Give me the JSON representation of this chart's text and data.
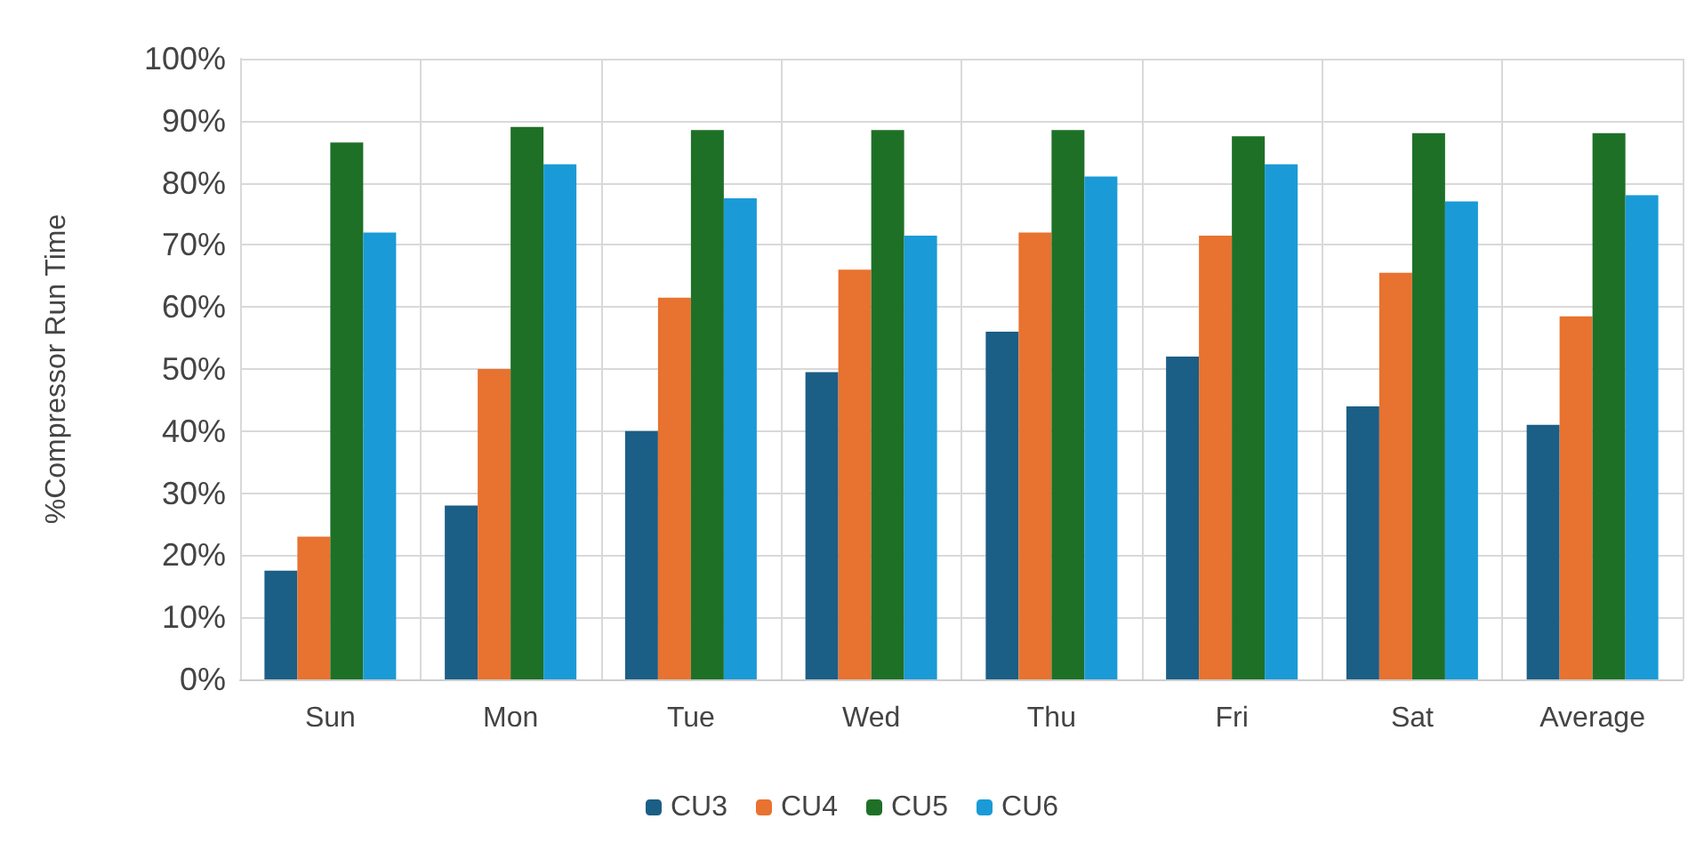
{
  "chart_data": {
    "type": "bar",
    "ylabel": "%Compressor Run Time",
    "categories": [
      "Sun",
      "Mon",
      "Tue",
      "Wed",
      "Thu",
      "Fri",
      "Sat",
      "Average"
    ],
    "series": [
      {
        "name": "CU3",
        "color": "#1b5e86",
        "values": [
          17.5,
          28,
          40,
          49.5,
          56,
          52,
          44,
          41
        ]
      },
      {
        "name": "CU4",
        "color": "#e8722f",
        "values": [
          23,
          50,
          61.5,
          66,
          72,
          71.5,
          65.5,
          58.5
        ]
      },
      {
        "name": "CU5",
        "color": "#1e7027",
        "values": [
          86.5,
          89,
          88.5,
          88.5,
          88.5,
          87.5,
          88,
          88
        ]
      },
      {
        "name": "CU6",
        "color": "#1a9bd7",
        "values": [
          72,
          83,
          77.5,
          71.5,
          81,
          83,
          77,
          78
        ]
      }
    ],
    "ylim": [
      0,
      100
    ],
    "yticks": [
      {
        "value": 0,
        "label": "0%"
      },
      {
        "value": 10,
        "label": "10%"
      },
      {
        "value": 20,
        "label": "20%"
      },
      {
        "value": 30,
        "label": "30%"
      },
      {
        "value": 40,
        "label": "40%"
      },
      {
        "value": 50,
        "label": "50%"
      },
      {
        "value": 60,
        "label": "60%"
      },
      {
        "value": 70,
        "label": "70%"
      },
      {
        "value": 80,
        "label": "80%"
      },
      {
        "value": 90,
        "label": "90%"
      },
      {
        "value": 100,
        "label": "100%"
      }
    ],
    "grid": true,
    "legend": "bottom"
  }
}
